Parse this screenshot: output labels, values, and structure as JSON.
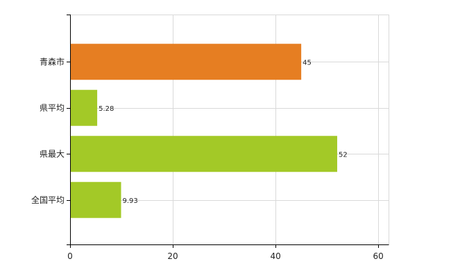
{
  "chart_data": {
    "type": "bar",
    "orientation": "horizontal",
    "categories": [
      "青森市",
      "県平均",
      "県最大",
      "全国平均"
    ],
    "values": [
      45,
      5.28,
      52,
      9.93
    ],
    "value_labels": [
      "45",
      "5.28",
      "52",
      "9.93"
    ],
    "colors": [
      "#e67e22",
      "#a3c927",
      "#a3c927",
      "#a3c927"
    ],
    "title": "",
    "xlabel": "",
    "ylabel": "",
    "xlim": [
      0,
      62
    ],
    "xticks": [
      0,
      20,
      40,
      60
    ],
    "xtick_labels": [
      "0",
      "20",
      "40",
      "60"
    ],
    "grid": true,
    "legend": "none"
  }
}
